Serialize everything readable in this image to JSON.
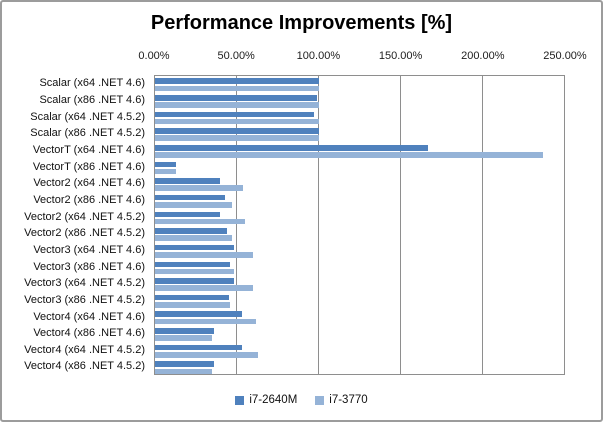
{
  "chart_data": {
    "type": "bar",
    "orientation": "horizontal",
    "title": "Performance Improvements [%]",
    "x_axis": {
      "position": "top",
      "min": 0,
      "max": 250,
      "tick_values": [
        0,
        50,
        100,
        150,
        200,
        250
      ],
      "tick_labels": [
        "0.00%",
        "50.00%",
        "100.00%",
        "150.00%",
        "200.00%",
        "250.00%"
      ],
      "grid": true
    },
    "categories": [
      "Scalar (x64 .NET 4.6)",
      "Scalar (x86 .NET 4.6)",
      "Scalar (x64 .NET 4.5.2)",
      "Scalar (x86 .NET 4.5.2)",
      "VectorT (x64 .NET 4.6)",
      "VectorT (x86 .NET 4.6)",
      "Vector2 (x64 .NET 4.6)",
      "Vector2 (x86 .NET 4.6)",
      "Vector2 (x64 .NET 4.5.2)",
      "Vector2 (x86 .NET 4.5.2)",
      "Vector3 (x64 .NET 4.6)",
      "Vector3 (x86 .NET 4.6)",
      "Vector3 (x64 .NET 4.5.2)",
      "Vector3 (x86 .NET 4.5.2)",
      "Vector4 (x64 .NET 4.6)",
      "Vector4 (x86 .NET 4.6)",
      "Vector4 (x64 .NET 4.5.2)",
      "Vector4 (x86 .NET 4.5.2)"
    ],
    "series": [
      {
        "name": "i7-2640M",
        "color": "#4f81bd",
        "values": [
          100,
          99,
          97,
          100,
          167,
          13,
          40,
          43,
          40,
          44,
          48,
          46,
          48,
          45,
          53,
          36,
          53,
          36
        ]
      },
      {
        "name": "i7-3770",
        "color": "#95b3d7",
        "values": [
          100,
          100,
          100,
          100,
          237,
          13,
          54,
          47,
          55,
          47,
          60,
          48,
          60,
          46,
          62,
          35,
          63,
          35
        ]
      }
    ],
    "legend_position": "bottom",
    "value_unit": "percent"
  },
  "colors": {
    "gridline": "#8e8e8e",
    "plot_border": "#8e8e8e",
    "chart_border": "#9c9c9c",
    "background": "#ffffff"
  }
}
